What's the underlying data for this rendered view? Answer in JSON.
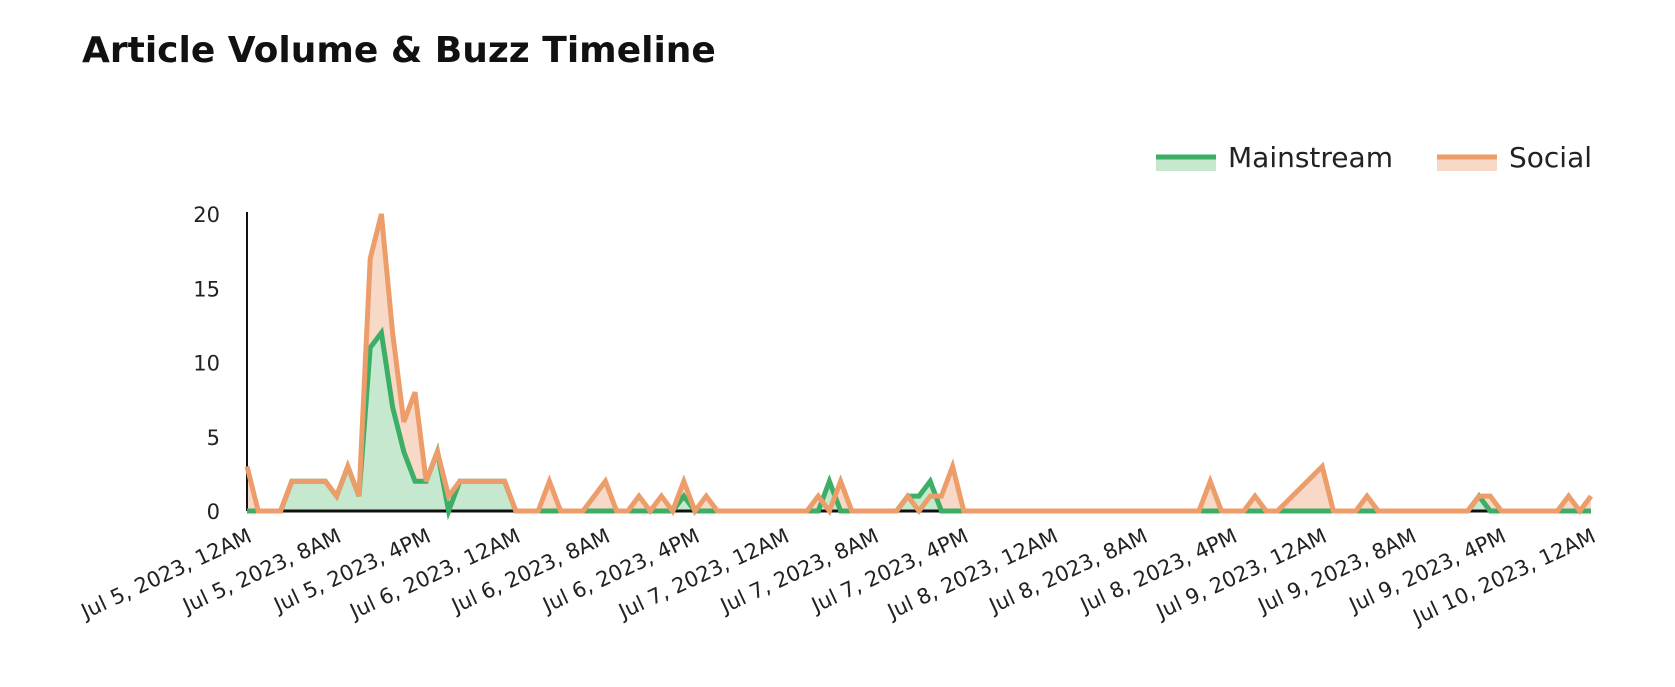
{
  "title": "Article Volume & Buzz Timeline",
  "colors": {
    "mainstream_line": "#3cae66",
    "mainstream_fill": "#c5e8cf",
    "social_line": "#ec9d6a",
    "social_fill": "#f8d9c7",
    "axis": "#111111"
  },
  "chart_data": {
    "type": "area",
    "title": "Article Volume & Buzz Timeline",
    "xlabel": "",
    "ylabel": "",
    "ylim": [
      0,
      20
    ],
    "yticks": [
      0,
      5,
      10,
      15,
      20
    ],
    "xlim": [
      "2023-07-05T00:00",
      "2023-07-10T00:00"
    ],
    "xtick_labels": [
      "Jul 5, 2023, 12AM",
      "Jul 5, 2023, 8AM",
      "Jul 5, 2023, 4PM",
      "Jul 6, 2023, 12AM",
      "Jul 6, 2023, 8AM",
      "Jul 6, 2023, 4PM",
      "Jul 7, 2023, 12AM",
      "Jul 7, 2023, 8AM",
      "Jul 7, 2023, 4PM",
      "Jul 8, 2023, 12AM",
      "Jul 8, 2023, 8AM",
      "Jul 8, 2023, 4PM",
      "Jul 9, 2023, 12AM",
      "Jul 9, 2023, 8AM",
      "Jul 9, 2023, 4PM",
      "Jul 10, 2023, 12AM"
    ],
    "grid": false,
    "legend_position": "top-right",
    "series": [
      {
        "name": "Mainstream",
        "points": [
          [
            "2023-07-05T00:00",
            0
          ],
          [
            "2023-07-05T01:00",
            0
          ],
          [
            "2023-07-05T02:00",
            0
          ],
          [
            "2023-07-05T03:00",
            0
          ],
          [
            "2023-07-05T04:00",
            2
          ],
          [
            "2023-07-05T05:00",
            2
          ],
          [
            "2023-07-05T06:00",
            2
          ],
          [
            "2023-07-05T07:00",
            2
          ],
          [
            "2023-07-05T08:00",
            1
          ],
          [
            "2023-07-05T09:00",
            3
          ],
          [
            "2023-07-05T10:00",
            1
          ],
          [
            "2023-07-05T11:00",
            11
          ],
          [
            "2023-07-05T12:00",
            12
          ],
          [
            "2023-07-05T13:00",
            7
          ],
          [
            "2023-07-05T14:00",
            4
          ],
          [
            "2023-07-05T15:00",
            2
          ],
          [
            "2023-07-05T16:00",
            2
          ],
          [
            "2023-07-05T17:00",
            4
          ],
          [
            "2023-07-05T18:00",
            0
          ],
          [
            "2023-07-05T19:00",
            2
          ],
          [
            "2023-07-05T20:00",
            2
          ],
          [
            "2023-07-05T21:00",
            2
          ],
          [
            "2023-07-05T22:00",
            2
          ],
          [
            "2023-07-05T23:00",
            2
          ],
          [
            "2023-07-06T00:00",
            0
          ],
          [
            "2023-07-06T14:00",
            0
          ],
          [
            "2023-07-06T15:00",
            1
          ],
          [
            "2023-07-06T16:00",
            0
          ],
          [
            "2023-07-07T03:00",
            0
          ],
          [
            "2023-07-07T04:00",
            2
          ],
          [
            "2023-07-07T05:00",
            0
          ],
          [
            "2023-07-07T10:00",
            0
          ],
          [
            "2023-07-07T11:00",
            1
          ],
          [
            "2023-07-07T12:00",
            1
          ],
          [
            "2023-07-07T13:00",
            2
          ],
          [
            "2023-07-07T14:00",
            0
          ],
          [
            "2023-07-09T13:00",
            0
          ],
          [
            "2023-07-09T14:00",
            1
          ],
          [
            "2023-07-09T15:00",
            0
          ],
          [
            "2023-07-10T00:00",
            0
          ]
        ]
      },
      {
        "name": "Social",
        "points": [
          [
            "2023-07-05T00:00",
            3
          ],
          [
            "2023-07-05T01:00",
            0
          ],
          [
            "2023-07-05T02:00",
            0
          ],
          [
            "2023-07-05T03:00",
            0
          ],
          [
            "2023-07-05T04:00",
            2
          ],
          [
            "2023-07-05T05:00",
            2
          ],
          [
            "2023-07-05T06:00",
            2
          ],
          [
            "2023-07-05T07:00",
            2
          ],
          [
            "2023-07-05T08:00",
            1
          ],
          [
            "2023-07-05T09:00",
            3
          ],
          [
            "2023-07-05T10:00",
            1
          ],
          [
            "2023-07-05T11:00",
            17
          ],
          [
            "2023-07-05T12:00",
            20
          ],
          [
            "2023-07-05T13:00",
            12
          ],
          [
            "2023-07-05T14:00",
            6
          ],
          [
            "2023-07-05T15:00",
            8
          ],
          [
            "2023-07-05T16:00",
            2
          ],
          [
            "2023-07-05T17:00",
            4
          ],
          [
            "2023-07-05T18:00",
            1
          ],
          [
            "2023-07-05T19:00",
            2
          ],
          [
            "2023-07-05T20:00",
            2
          ],
          [
            "2023-07-05T21:00",
            2
          ],
          [
            "2023-07-05T22:00",
            2
          ],
          [
            "2023-07-05T23:00",
            2
          ],
          [
            "2023-07-06T00:00",
            0
          ],
          [
            "2023-07-06T01:00",
            0
          ],
          [
            "2023-07-06T02:00",
            0
          ],
          [
            "2023-07-06T03:00",
            2
          ],
          [
            "2023-07-06T04:00",
            0
          ],
          [
            "2023-07-06T05:00",
            0
          ],
          [
            "2023-07-06T06:00",
            0
          ],
          [
            "2023-07-06T07:00",
            1
          ],
          [
            "2023-07-06T08:00",
            2
          ],
          [
            "2023-07-06T09:00",
            0
          ],
          [
            "2023-07-06T10:00",
            0
          ],
          [
            "2023-07-06T11:00",
            1
          ],
          [
            "2023-07-06T12:00",
            0
          ],
          [
            "2023-07-06T13:00",
            1
          ],
          [
            "2023-07-06T14:00",
            0
          ],
          [
            "2023-07-06T15:00",
            2
          ],
          [
            "2023-07-06T16:00",
            0
          ],
          [
            "2023-07-06T17:00",
            1
          ],
          [
            "2023-07-06T18:00",
            0
          ],
          [
            "2023-07-07T02:00",
            0
          ],
          [
            "2023-07-07T03:00",
            1
          ],
          [
            "2023-07-07T04:00",
            0
          ],
          [
            "2023-07-07T05:00",
            2
          ],
          [
            "2023-07-07T06:00",
            0
          ],
          [
            "2023-07-07T10:00",
            0
          ],
          [
            "2023-07-07T11:00",
            1
          ],
          [
            "2023-07-07T12:00",
            0
          ],
          [
            "2023-07-07T13:00",
            1
          ],
          [
            "2023-07-07T14:00",
            1
          ],
          [
            "2023-07-07T15:00",
            3
          ],
          [
            "2023-07-07T16:00",
            0
          ],
          [
            "2023-07-08T13:00",
            0
          ],
          [
            "2023-07-08T14:00",
            2
          ],
          [
            "2023-07-08T15:00",
            0
          ],
          [
            "2023-07-08T16:00",
            0
          ],
          [
            "2023-07-08T17:00",
            0
          ],
          [
            "2023-07-08T18:00",
            1
          ],
          [
            "2023-07-08T19:00",
            0
          ],
          [
            "2023-07-08T20:00",
            0
          ],
          [
            "2023-07-08T24:00",
            3
          ],
          [
            "2023-07-09T01:00",
            0
          ],
          [
            "2023-07-09T03:00",
            0
          ],
          [
            "2023-07-09T04:00",
            1
          ],
          [
            "2023-07-09T05:00",
            0
          ],
          [
            "2023-07-09T13:00",
            0
          ],
          [
            "2023-07-09T14:00",
            1
          ],
          [
            "2023-07-09T15:00",
            1
          ],
          [
            "2023-07-09T16:00",
            0
          ],
          [
            "2023-07-09T21:00",
            0
          ],
          [
            "2023-07-09T22:00",
            1
          ],
          [
            "2023-07-09T23:00",
            0
          ],
          [
            "2023-07-10T00:00",
            1
          ]
        ]
      }
    ]
  }
}
